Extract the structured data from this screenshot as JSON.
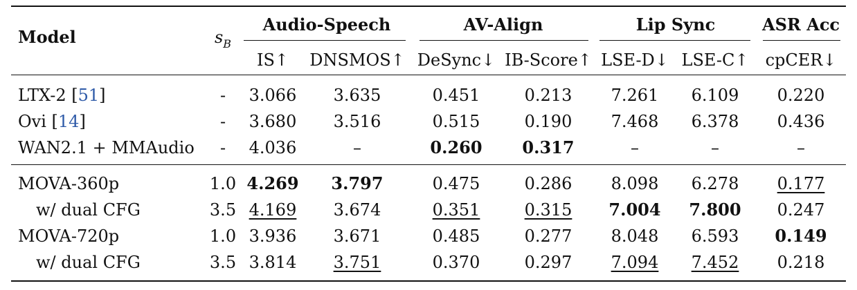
{
  "header": {
    "model": "Model",
    "sb_main": "s",
    "sb_sub": "B",
    "groups": {
      "audio_speech": "Audio-Speech",
      "av_align": "AV-Align",
      "lip_sync": "Lip Sync",
      "asr_acc": "ASR Acc"
    },
    "metrics": {
      "is": "IS↑",
      "dnsmos": "DNSMOS↑",
      "desync": "DeSync↓",
      "ib_score": "IB-Score↑",
      "lse_d": "LSE-D↓",
      "lse_c": "LSE-C↑",
      "cpcer": "cpCER↓"
    }
  },
  "rows": [
    {
      "model": "LTX-2 [",
      "ref": "51",
      "model_close": "]",
      "sb": "-",
      "is": "3.066",
      "dnsmos": "3.635",
      "desync": "0.451",
      "ib_score": "0.213",
      "lse_d": "7.261",
      "lse_c": "6.109",
      "cpcer": "0.220"
    },
    {
      "model": "Ovi [",
      "ref": "14",
      "model_close": "]",
      "sb": "-",
      "is": "3.680",
      "dnsmos": "3.516",
      "desync": "0.515",
      "ib_score": "0.190",
      "lse_d": "7.468",
      "lse_c": "6.378",
      "cpcer": "0.436"
    },
    {
      "model": "WAN2.1 + MMAudio",
      "sb": "-",
      "is": "4.036",
      "dnsmos": "–",
      "desync": "0.260",
      "ib_score": "0.317",
      "lse_d": "–",
      "lse_c": "–",
      "cpcer": "–"
    },
    {
      "model": "MOVA-360p",
      "sb": "1.0",
      "is": "4.269",
      "dnsmos": "3.797",
      "desync": "0.475",
      "ib_score": "0.286",
      "lse_d": "8.098",
      "lse_c": "6.278",
      "cpcer": "0.177"
    },
    {
      "model": "w/ dual CFG",
      "sb": "3.5",
      "is": "4.169",
      "dnsmos": "3.674",
      "desync": "0.351",
      "ib_score": "0.315",
      "lse_d": "7.004",
      "lse_c": "7.800",
      "cpcer": "0.247"
    },
    {
      "model": "MOVA-720p",
      "sb": "1.0",
      "is": "3.936",
      "dnsmos": "3.671",
      "desync": "0.485",
      "ib_score": "0.277",
      "lse_d": "8.048",
      "lse_c": "6.593",
      "cpcer": "0.149"
    },
    {
      "model": "w/ dual CFG",
      "sb": "3.5",
      "is": "3.814",
      "dnsmos": "3.751",
      "desync": "0.370",
      "ib_score": "0.297",
      "lse_d": "7.094",
      "lse_c": "7.452",
      "cpcer": "0.218"
    }
  ]
}
